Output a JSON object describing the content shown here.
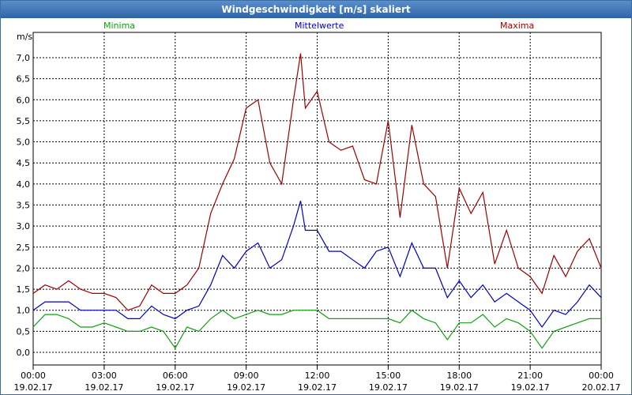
{
  "window": {
    "title": "Windgeschwindigkeit [m/s] skaliert"
  },
  "legend": {
    "minima": "Minima",
    "mittelwerte": "Mittelwerte",
    "maxima": "Maxima"
  },
  "colors": {
    "minima": "#10a010",
    "mittelwerte": "#0000c8",
    "maxima": "#a00000",
    "grid": "#000000",
    "titlebar": "#3b6ea5"
  },
  "chart_data": {
    "type": "line",
    "title": "Windgeschwindigkeit [m/s] skaliert",
    "ylabel": "m/s",
    "ylim": [
      -0.3,
      7.6
    ],
    "yticks": [
      0.0,
      0.5,
      1.0,
      1.5,
      2.0,
      2.5,
      3.0,
      3.5,
      4.0,
      4.5,
      5.0,
      5.5,
      6.0,
      6.5,
      7.0
    ],
    "ytick_labels": [
      "0,0",
      "0,5",
      "1,0",
      "1,5",
      "2,0",
      "2,5",
      "3,0",
      "3,5",
      "4,0",
      "4,5",
      "5,0",
      "5,5",
      "6,0",
      "6,5",
      "7,0"
    ],
    "xlim": [
      0,
      24
    ],
    "xticks": [
      0,
      3,
      6,
      9,
      12,
      15,
      18,
      21,
      24
    ],
    "xtick_labels": [
      [
        "00:00",
        "19.02.17"
      ],
      [
        "03:00",
        "19.02.17"
      ],
      [
        "06:00",
        "19.02.17"
      ],
      [
        "09:00",
        "19.02.17"
      ],
      [
        "12:00",
        "19.02.17"
      ],
      [
        "15:00",
        "19.02.17"
      ],
      [
        "18:00",
        "19.02.17"
      ],
      [
        "21:00",
        "19.02.17"
      ],
      [
        "00:00",
        "20.02.17"
      ]
    ],
    "grid": true,
    "series": [
      {
        "name": "Maxima",
        "x": [
          0,
          0.5,
          1,
          1.5,
          2,
          2.5,
          3,
          3.5,
          4,
          4.5,
          5,
          5.5,
          6,
          6.5,
          7,
          7.5,
          8,
          8.5,
          9,
          9.5,
          10,
          10.5,
          11,
          11.3,
          11.5,
          12,
          12.5,
          13,
          13.5,
          14,
          14.5,
          15,
          15.5,
          16,
          16.5,
          17,
          17.5,
          18,
          18.5,
          19,
          19.5,
          20,
          20.5,
          21,
          21.5,
          22,
          22.5,
          23,
          23.5,
          24
        ],
        "y": [
          1.4,
          1.6,
          1.5,
          1.7,
          1.5,
          1.4,
          1.4,
          1.3,
          1.0,
          1.1,
          1.6,
          1.4,
          1.4,
          1.6,
          2.0,
          3.3,
          4.0,
          4.6,
          5.8,
          6.0,
          4.5,
          4.0,
          6.0,
          7.1,
          5.8,
          6.2,
          5.0,
          4.8,
          4.9,
          4.1,
          4.0,
          5.5,
          3.2,
          5.4,
          4.0,
          3.7,
          2.0,
          3.9,
          3.3,
          3.8,
          2.1,
          2.9,
          2.0,
          1.8,
          1.4,
          2.3,
          1.8,
          2.4,
          2.7,
          2.0
        ]
      },
      {
        "name": "Mittelwerte",
        "x": [
          0,
          0.5,
          1,
          1.5,
          2,
          2.5,
          3,
          3.5,
          4,
          4.5,
          5,
          5.5,
          6,
          6.5,
          7,
          7.5,
          8,
          8.5,
          9,
          9.5,
          10,
          10.5,
          11,
          11.3,
          11.5,
          12,
          12.5,
          13,
          13.5,
          14,
          14.5,
          15,
          15.5,
          16,
          16.5,
          17,
          17.5,
          18,
          18.5,
          19,
          19.5,
          20,
          20.5,
          21,
          21.5,
          22,
          22.5,
          23,
          23.5,
          24
        ],
        "y": [
          1.0,
          1.2,
          1.2,
          1.2,
          1.0,
          1.0,
          1.0,
          1.0,
          0.8,
          0.8,
          1.1,
          0.9,
          0.8,
          1.0,
          1.1,
          1.6,
          2.3,
          2.0,
          2.4,
          2.6,
          2.0,
          2.2,
          3.0,
          3.6,
          2.9,
          2.9,
          2.4,
          2.4,
          2.2,
          2.0,
          2.4,
          2.5,
          1.8,
          2.6,
          2.0,
          2.0,
          1.3,
          1.7,
          1.3,
          1.6,
          1.2,
          1.4,
          1.2,
          1.0,
          0.6,
          1.0,
          0.9,
          1.2,
          1.6,
          1.3
        ]
      },
      {
        "name": "Minima",
        "x": [
          0,
          0.5,
          1,
          1.5,
          2,
          2.5,
          3,
          3.5,
          4,
          4.5,
          5,
          5.5,
          6,
          6.5,
          7,
          7.5,
          8,
          8.5,
          9,
          9.5,
          10,
          10.5,
          11,
          11.3,
          11.5,
          12,
          12.5,
          13,
          13.5,
          14,
          14.5,
          15,
          15.5,
          16,
          16.5,
          17,
          17.5,
          18,
          18.5,
          19,
          19.5,
          20,
          20.5,
          21,
          21.5,
          22,
          22.5,
          23,
          23.5,
          24
        ],
        "y": [
          0.6,
          0.9,
          0.9,
          0.8,
          0.6,
          0.6,
          0.7,
          0.6,
          0.5,
          0.5,
          0.6,
          0.5,
          0.1,
          0.6,
          0.5,
          0.8,
          1.0,
          0.8,
          0.9,
          1.0,
          0.9,
          0.9,
          1.0,
          1.0,
          1.0,
          1.0,
          0.8,
          0.8,
          0.8,
          0.8,
          0.8,
          0.8,
          0.7,
          1.0,
          0.8,
          0.7,
          0.3,
          0.7,
          0.7,
          0.9,
          0.6,
          0.8,
          0.7,
          0.5,
          0.1,
          0.5,
          0.6,
          0.7,
          0.8,
          0.8
        ]
      }
    ]
  }
}
